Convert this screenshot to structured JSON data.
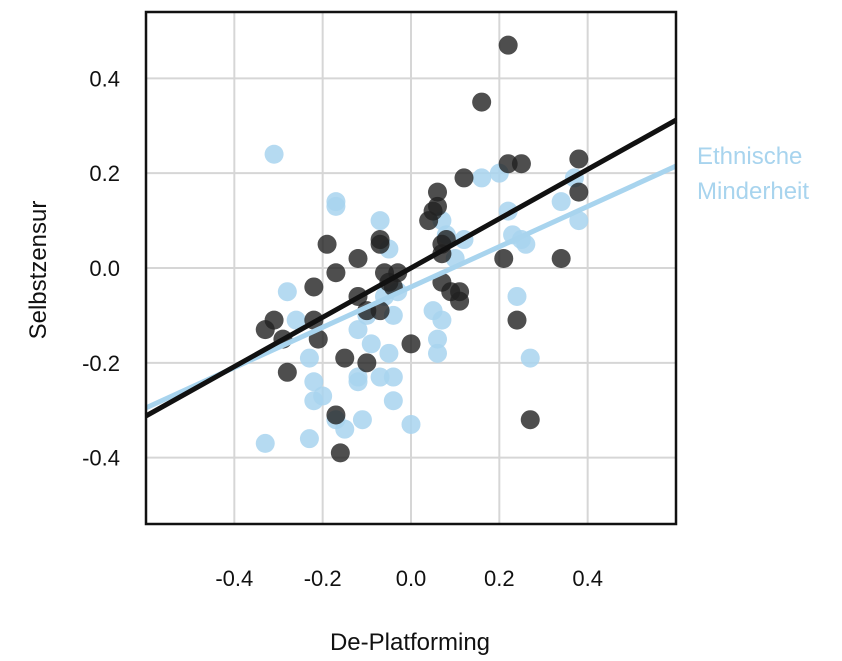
{
  "chart_data": {
    "type": "scatter",
    "xlabel": "De-Platforming",
    "ylabel": "Selbstzensur",
    "xlim": [
      -0.6,
      0.6
    ],
    "ylim": [
      -0.54,
      0.54
    ],
    "xticks": [
      -0.4,
      -0.2,
      0.0,
      0.2,
      0.4
    ],
    "xtick_labels": [
      "-0.4",
      "-0.2",
      "0.0",
      "0.2",
      "0.4"
    ],
    "yticks": [
      -0.4,
      -0.2,
      0.0,
      0.2,
      0.4
    ],
    "ytick_labels": [
      "-0.4",
      "-0.2",
      "0.0",
      "0.2",
      "0.4"
    ],
    "grid": true,
    "series": [
      {
        "color": "#a8d4ee",
        "fit": {
          "intercept": -0.04,
          "slope": 0.425
        },
        "points": [
          [
            -0.31,
            0.24
          ],
          [
            -0.28,
            -0.05
          ],
          [
            -0.26,
            -0.11
          ],
          [
            -0.23,
            -0.19
          ],
          [
            -0.22,
            -0.24
          ],
          [
            -0.22,
            -0.28
          ],
          [
            -0.2,
            -0.27
          ],
          [
            -0.23,
            -0.36
          ],
          [
            -0.33,
            -0.37
          ],
          [
            -0.17,
            0.14
          ],
          [
            -0.17,
            0.13
          ],
          [
            -0.17,
            -0.32
          ],
          [
            -0.15,
            -0.34
          ],
          [
            -0.12,
            -0.24
          ],
          [
            -0.12,
            -0.23
          ],
          [
            -0.11,
            -0.32
          ],
          [
            -0.12,
            -0.13
          ],
          [
            -0.1,
            -0.1
          ],
          [
            -0.09,
            -0.16
          ],
          [
            -0.07,
            -0.23
          ],
          [
            -0.05,
            -0.18
          ],
          [
            -0.04,
            -0.23
          ],
          [
            -0.04,
            -0.28
          ],
          [
            -0.04,
            -0.1
          ],
          [
            -0.07,
            0.1
          ],
          [
            -0.05,
            0.04
          ],
          [
            -0.06,
            -0.06
          ],
          [
            -0.03,
            -0.05
          ],
          [
            0.0,
            -0.33
          ],
          [
            0.05,
            -0.09
          ],
          [
            0.06,
            -0.15
          ],
          [
            0.06,
            -0.18
          ],
          [
            0.07,
            -0.11
          ],
          [
            0.07,
            0.1
          ],
          [
            0.08,
            0.07
          ],
          [
            0.1,
            0.02
          ],
          [
            0.12,
            0.06
          ],
          [
            0.16,
            0.19
          ],
          [
            0.2,
            0.2
          ],
          [
            0.22,
            0.12
          ],
          [
            0.23,
            0.07
          ],
          [
            0.25,
            0.06
          ],
          [
            0.26,
            0.05
          ],
          [
            0.24,
            -0.06
          ],
          [
            0.27,
            -0.19
          ],
          [
            0.34,
            0.14
          ],
          [
            0.37,
            0.19
          ],
          [
            0.38,
            0.1
          ]
        ]
      },
      {
        "color": "#222222",
        "fit": {
          "intercept": 0.0,
          "slope": 0.52
        },
        "points": [
          [
            -0.33,
            -0.13
          ],
          [
            -0.31,
            -0.11
          ],
          [
            -0.29,
            -0.15
          ],
          [
            -0.28,
            -0.22
          ],
          [
            -0.22,
            -0.04
          ],
          [
            -0.22,
            -0.11
          ],
          [
            -0.21,
            -0.15
          ],
          [
            -0.19,
            0.05
          ],
          [
            -0.17,
            -0.01
          ],
          [
            -0.17,
            -0.31
          ],
          [
            -0.16,
            -0.39
          ],
          [
            -0.15,
            -0.19
          ],
          [
            -0.12,
            0.02
          ],
          [
            -0.12,
            -0.06
          ],
          [
            -0.1,
            -0.09
          ],
          [
            -0.1,
            -0.2
          ],
          [
            -0.07,
            0.06
          ],
          [
            -0.07,
            0.05
          ],
          [
            -0.06,
            -0.01
          ],
          [
            -0.05,
            -0.03
          ],
          [
            -0.04,
            -0.04
          ],
          [
            -0.07,
            -0.09
          ],
          [
            -0.03,
            -0.01
          ],
          [
            0.0,
            -0.16
          ],
          [
            0.04,
            0.1
          ],
          [
            0.05,
            0.12
          ],
          [
            0.06,
            0.16
          ],
          [
            0.06,
            0.13
          ],
          [
            0.07,
            0.05
          ],
          [
            0.07,
            0.03
          ],
          [
            0.08,
            0.06
          ],
          [
            0.07,
            -0.03
          ],
          [
            0.09,
            -0.05
          ],
          [
            0.11,
            -0.07
          ],
          [
            0.11,
            -0.05
          ],
          [
            0.12,
            0.19
          ],
          [
            0.16,
            0.35
          ],
          [
            0.21,
            0.02
          ],
          [
            0.22,
            0.22
          ],
          [
            0.25,
            0.22
          ],
          [
            0.22,
            0.47
          ],
          [
            0.24,
            -0.11
          ],
          [
            0.27,
            -0.32
          ],
          [
            0.34,
            0.02
          ],
          [
            0.38,
            0.23
          ],
          [
            0.38,
            0.16
          ]
        ]
      }
    ],
    "annotations": [
      {
        "text": "Ethnische",
        "color": "#a8d4ee"
      },
      {
        "text": "Minderheit",
        "color": "#a8d4ee"
      }
    ]
  }
}
